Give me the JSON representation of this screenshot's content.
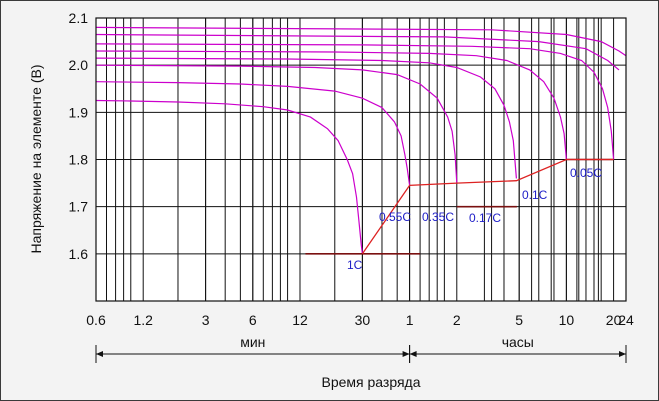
{
  "chart_data": {
    "type": "line",
    "title": "",
    "ylabel": "Напряжение на элементе (В)",
    "xlabel": "Время разряда",
    "x_unit_groups": [
      {
        "label": "мин",
        "from_min": 0.6,
        "to_min": 60
      },
      {
        "label": "часы",
        "from_min": 60,
        "to_min": 1440
      }
    ],
    "x_ticks": [
      {
        "label": "0.6",
        "minutes": 0.6
      },
      {
        "label": "1.2",
        "minutes": 1.2
      },
      {
        "label": "3",
        "minutes": 3
      },
      {
        "label": "6",
        "minutes": 6
      },
      {
        "label": "12",
        "minutes": 12
      },
      {
        "label": "30",
        "minutes": 30
      },
      {
        "label": "1",
        "minutes": 60
      },
      {
        "label": "2",
        "minutes": 120
      },
      {
        "label": "5",
        "minutes": 300
      },
      {
        "label": "10",
        "minutes": 600
      },
      {
        "label": "20",
        "minutes": 1200
      },
      {
        "label": "24",
        "minutes": 1440
      }
    ],
    "x_scale": "log",
    "xlim_minutes": [
      0.6,
      1440
    ],
    "ylim": [
      1.5,
      2.1
    ],
    "y_ticks": [
      "1.6",
      "1.7",
      "1.8",
      "1.9",
      "2.0",
      "2.1"
    ],
    "grid": true,
    "series": [
      {
        "name": "1C",
        "color": "#cc00cc",
        "end_minutes": 30,
        "end_voltage": 1.6,
        "points": [
          [
            0.6,
            1.925
          ],
          [
            1,
            1.924
          ],
          [
            2,
            1.922
          ],
          [
            4,
            1.918
          ],
          [
            7,
            1.912
          ],
          [
            10,
            1.905
          ],
          [
            14,
            1.89
          ],
          [
            18,
            1.865
          ],
          [
            21,
            1.84
          ],
          [
            24,
            1.8
          ],
          [
            26,
            1.77
          ],
          [
            27.5,
            1.72
          ],
          [
            28.5,
            1.67
          ],
          [
            29.5,
            1.62
          ],
          [
            30,
            1.6
          ]
        ]
      },
      {
        "name": "0.55C",
        "color": "#cc00cc",
        "end_minutes": 60,
        "end_voltage": 1.745,
        "points": [
          [
            0.6,
            1.965
          ],
          [
            2,
            1.963
          ],
          [
            5,
            1.96
          ],
          [
            10,
            1.955
          ],
          [
            20,
            1.945
          ],
          [
            30,
            1.93
          ],
          [
            40,
            1.91
          ],
          [
            48,
            1.88
          ],
          [
            53,
            1.85
          ],
          [
            56,
            1.81
          ],
          [
            58,
            1.78
          ],
          [
            60,
            1.745
          ]
        ]
      },
      {
        "name": "0.35C",
        "color": "#cc00cc",
        "end_minutes": 120,
        "end_voltage": 1.75,
        "points": [
          [
            0.6,
            2.0
          ],
          [
            5,
            1.998
          ],
          [
            15,
            1.995
          ],
          [
            30,
            1.99
          ],
          [
            50,
            1.98
          ],
          [
            70,
            1.96
          ],
          [
            90,
            1.93
          ],
          [
            105,
            1.89
          ],
          [
            112,
            1.86
          ],
          [
            117,
            1.81
          ],
          [
            120,
            1.75
          ]
        ]
      },
      {
        "name": "0.17C",
        "color": "#cc00cc",
        "end_minutes": 288,
        "end_voltage": 1.76,
        "points": [
          [
            0.6,
            2.015
          ],
          [
            10,
            2.013
          ],
          [
            40,
            2.01
          ],
          [
            80,
            2.005
          ],
          [
            120,
            1.995
          ],
          [
            170,
            1.975
          ],
          [
            210,
            1.95
          ],
          [
            240,
            1.915
          ],
          [
            260,
            1.88
          ],
          [
            275,
            1.84
          ],
          [
            288,
            1.76
          ]
        ]
      },
      {
        "name": "0.1C",
        "color": "#cc00cc",
        "end_minutes": 600,
        "end_voltage": 1.8,
        "points": [
          [
            0.6,
            2.03
          ],
          [
            20,
            2.028
          ],
          [
            80,
            2.025
          ],
          [
            160,
            2.02
          ],
          [
            250,
            2.01
          ],
          [
            350,
            1.99
          ],
          [
            430,
            1.965
          ],
          [
            500,
            1.93
          ],
          [
            550,
            1.89
          ],
          [
            580,
            1.855
          ],
          [
            600,
            1.8
          ]
        ]
      },
      {
        "name": "0.05C",
        "color": "#cc00cc",
        "end_minutes": 1200,
        "end_voltage": 1.8,
        "points": [
          [
            0.6,
            2.045
          ],
          [
            30,
            2.043
          ],
          [
            150,
            2.04
          ],
          [
            350,
            2.035
          ],
          [
            550,
            2.025
          ],
          [
            750,
            2.01
          ],
          [
            900,
            1.985
          ],
          [
            1020,
            1.95
          ],
          [
            1100,
            1.91
          ],
          [
            1160,
            1.86
          ],
          [
            1200,
            1.8
          ]
        ]
      }
    ],
    "extra_curves_without_label": [
      {
        "color": "#cc00cc",
        "points": [
          [
            0.6,
            2.065
          ],
          [
            100,
            2.06
          ],
          [
            400,
            2.05
          ],
          [
            800,
            2.035
          ],
          [
            1100,
            2.01
          ],
          [
            1300,
            1.99
          ]
        ]
      },
      {
        "color": "#cc00cc",
        "points": [
          [
            0.6,
            2.08
          ],
          [
            200,
            2.075
          ],
          [
            600,
            2.065
          ],
          [
            1000,
            2.05
          ],
          [
            1300,
            2.03
          ],
          [
            1440,
            2.02
          ]
        ]
      }
    ],
    "end_voltage_line": {
      "color": "#dd2222",
      "points": [
        [
          30,
          1.6
        ],
        [
          60,
          1.745
        ],
        [
          120,
          1.75
        ],
        [
          288,
          1.755
        ],
        [
          600,
          1.8
        ],
        [
          1200,
          1.8
        ]
      ]
    },
    "end_voltage_markers": [
      {
        "y": 1.6,
        "x_from": 13,
        "x_to": 70
      },
      {
        "y": 1.7,
        "x_from": 120,
        "x_to": 290
      },
      {
        "y": 1.8,
        "x_from": 600,
        "x_to": 1200
      }
    ]
  }
}
